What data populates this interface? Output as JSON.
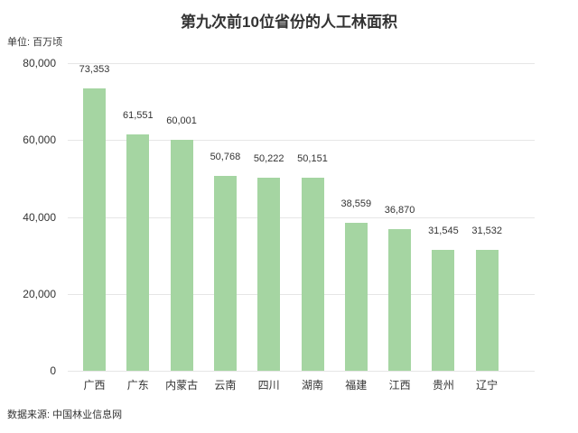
{
  "chart": {
    "title": "第九次前10位省份的人工林面积",
    "unit_label": "单位: 百万顷",
    "source_label": "数据来源: 中国林业信息网",
    "bar_color": "#a5d5a2",
    "grid_color": "#e6e6e6",
    "text_color": "#333333"
  },
  "chart_data": {
    "type": "bar",
    "title": "第九次前10位省份的人工林面积",
    "categories": [
      "广西",
      "广东",
      "内蒙古",
      "云南",
      "四川",
      "湖南",
      "福建",
      "江西",
      "贵州",
      "辽宁"
    ],
    "values": [
      73353,
      61551,
      60001,
      50768,
      50222,
      50151,
      38559,
      36870,
      31545,
      31532
    ],
    "value_labels": [
      "73,353",
      "61,551",
      "60,001",
      "50,768",
      "50,222",
      "50,151",
      "38,559",
      "36,870",
      "31,545",
      "31,532"
    ],
    "xlabel": "",
    "ylabel": "单位: 百万顷",
    "ylim": [
      0,
      80000
    ],
    "yticks": [
      0,
      20000,
      40000,
      60000,
      80000
    ],
    "ytick_labels": [
      "0",
      "20,000",
      "40,000",
      "60,000",
      "80,000"
    ],
    "grid": true,
    "legend_position": "none",
    "bar_color": "#a5d5a2",
    "source": "数据来源: 中国林业信息网"
  }
}
